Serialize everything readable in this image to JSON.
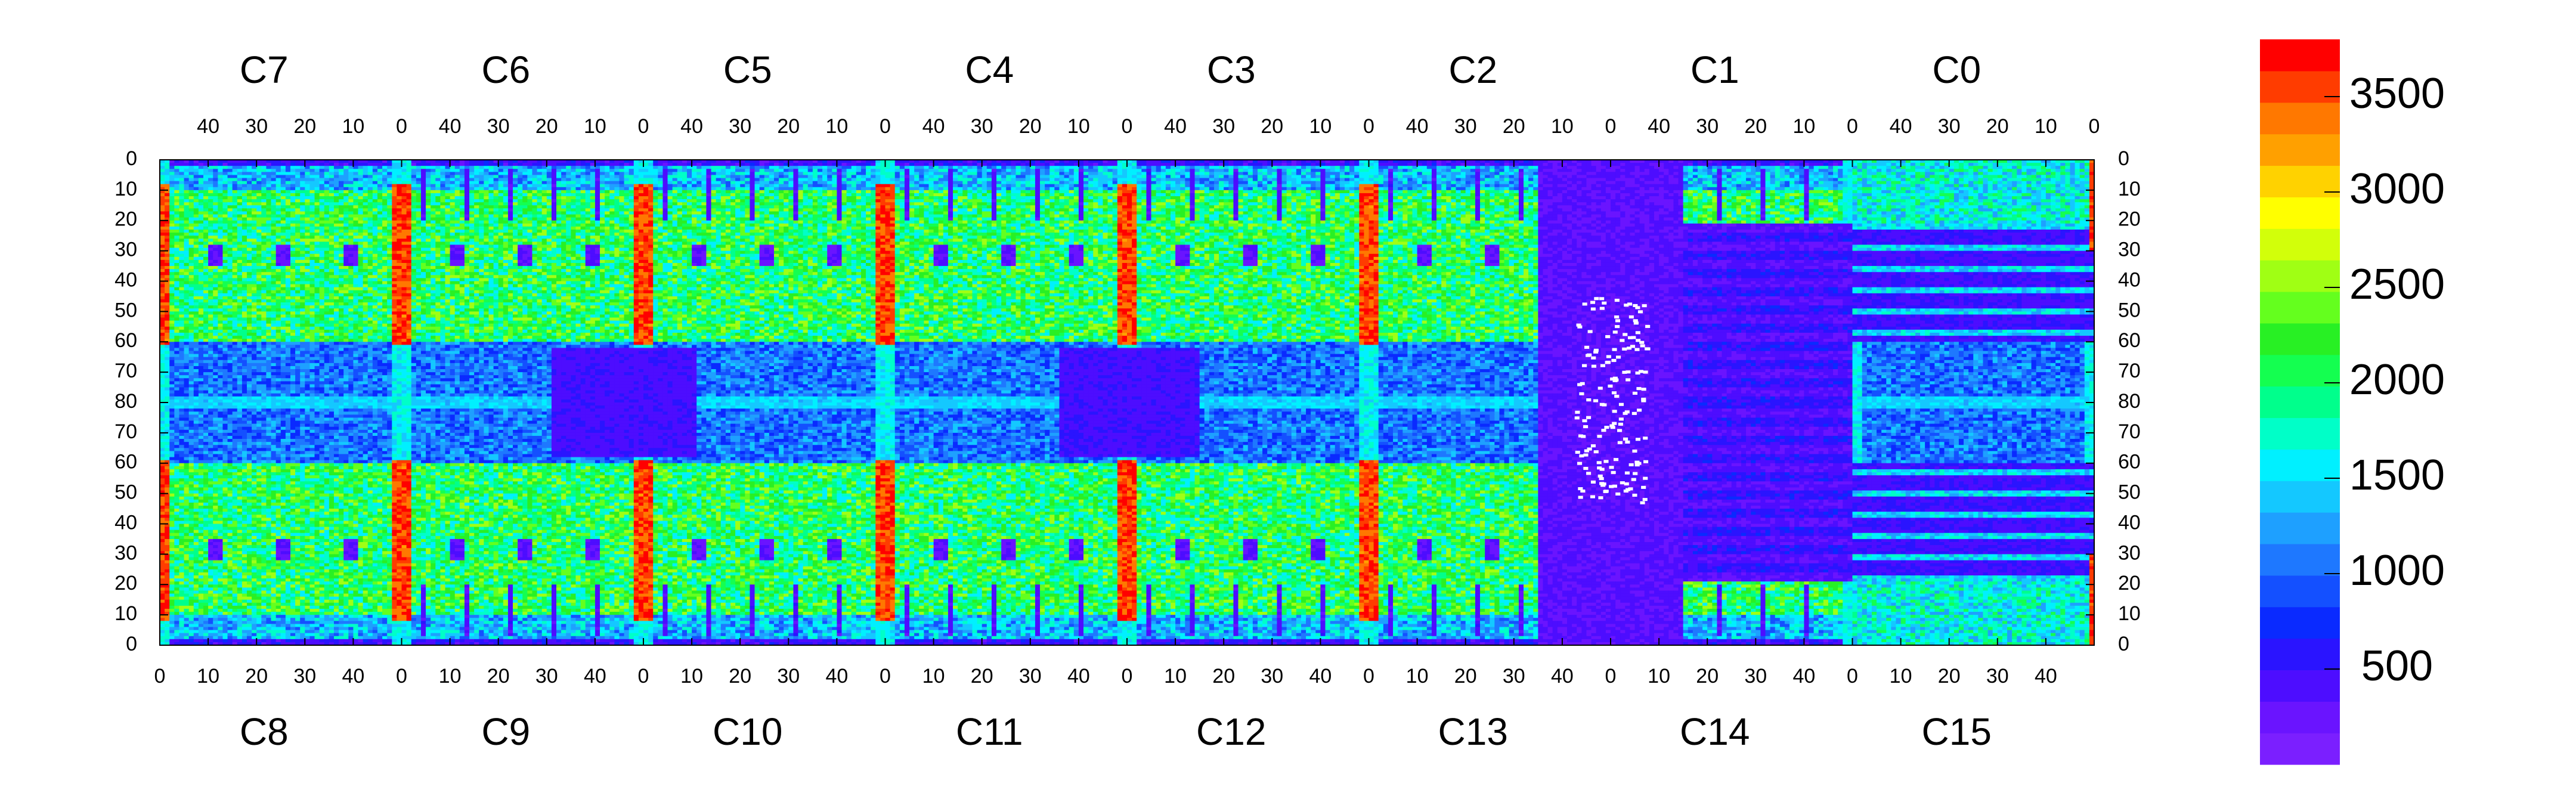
{
  "chart_data": {
    "type": "heatmap",
    "title": "",
    "xlabel": "",
    "ylabel": "",
    "top_row": {
      "chip_labels": [
        "C7",
        "C6",
        "C5",
        "C4",
        "C3",
        "C2",
        "C1",
        "C0"
      ],
      "x_ticks": [
        "40",
        "30",
        "20",
        "10",
        "0"
      ],
      "y_ticks": [
        "0",
        "10",
        "20",
        "30",
        "40",
        "50",
        "60",
        "70",
        "80"
      ]
    },
    "bottom_row": {
      "chip_labels": [
        "C8",
        "C9",
        "C10",
        "C11",
        "C12",
        "C13",
        "C14",
        "C15"
      ],
      "x_ticks": [
        "0",
        "10",
        "20",
        "30",
        "40"
      ],
      "y_ticks": [
        "80",
        "70",
        "60",
        "50",
        "40",
        "30",
        "20",
        "10",
        "0"
      ]
    },
    "column_range": [
      0,
      50
    ],
    "row_range": [
      0,
      80
    ],
    "colorbar": {
      "min": 0,
      "max": 3800,
      "tick_labels": [
        "500",
        "1000",
        "1500",
        "2000",
        "2500",
        "3000",
        "3500"
      ],
      "tick_values": [
        500,
        1000,
        1500,
        2000,
        2500,
        3000,
        3500
      ],
      "levels": 20,
      "colors": [
        "#7b1fff",
        "#6a14ff",
        "#4d0dff",
        "#2a14ff",
        "#0a2aff",
        "#1450ff",
        "#1e78ff",
        "#1ea0ff",
        "#14c8ff",
        "#00f0ff",
        "#00ffc8",
        "#00ff8c",
        "#14ff50",
        "#28f024",
        "#64ff1e",
        "#a0ff14",
        "#d2ff0a",
        "#ffff00",
        "#ffd200",
        "#ffa000",
        "#ff7800",
        "#ff3c00",
        "#ff0000"
      ]
    },
    "notes_visible": "no numeric values printed on cells"
  }
}
